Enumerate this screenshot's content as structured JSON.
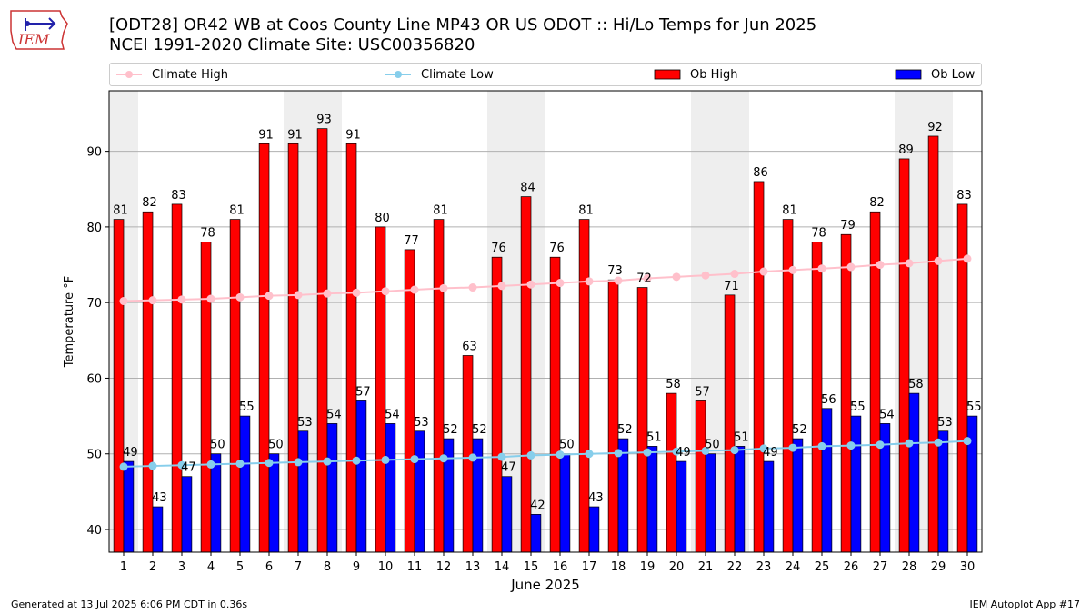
{
  "header": {
    "logo_text": "IEM",
    "title_line1": "[ODT28] OR42 WB at Coos County Line MP43 OR US ODOT :: Hi/Lo Temps for Jun 2025",
    "title_line2": "NCEI 1991-2020 Climate Site: USC00356820"
  },
  "legend": {
    "climate_high": "Climate High",
    "climate_low": "Climate Low",
    "ob_high": "Ob High",
    "ob_low": "Ob Low"
  },
  "footer": {
    "generated": "Generated at 13 Jul 2025 6:06 PM CDT in 0.36s",
    "app": "IEM Autoplot App #17"
  },
  "colors": {
    "ob_high": "#ff0000",
    "ob_low": "#0000ff",
    "climate_high": "#ffc0cb",
    "climate_low": "#87ceeb",
    "weekend_shade": "#eeeeee",
    "grid": "#b0b0b0",
    "logo": "#cc3333"
  },
  "chart_data": {
    "type": "bar",
    "xlabel": "June 2025",
    "ylabel": "Temperature °F",
    "ylim": [
      37,
      98
    ],
    "yticks": [
      40,
      50,
      60,
      70,
      80,
      90
    ],
    "grid": true,
    "legend_position": "top",
    "categories": [
      "1",
      "2",
      "3",
      "4",
      "5",
      "6",
      "7",
      "8",
      "9",
      "10",
      "11",
      "12",
      "13",
      "14",
      "15",
      "16",
      "17",
      "18",
      "19",
      "20",
      "21",
      "22",
      "23",
      "24",
      "25",
      "26",
      "27",
      "28",
      "29",
      "30"
    ],
    "weekend_days": [
      1,
      7,
      8,
      14,
      15,
      21,
      22,
      28,
      29
    ],
    "series": [
      {
        "name": "Ob High",
        "kind": "bar",
        "values": [
          81,
          82,
          83,
          78,
          81,
          91,
          91,
          93,
          91,
          80,
          77,
          81,
          63,
          76,
          84,
          76,
          81,
          73,
          72,
          58,
          57,
          71,
          86,
          81,
          78,
          79,
          82,
          89,
          92,
          83
        ],
        "labels": [
          "81",
          "82",
          "83",
          "78",
          "81",
          "91",
          "91",
          "93",
          "91",
          "80",
          "77",
          "81",
          "63",
          "76",
          "84",
          "76",
          "81",
          "73",
          "72",
          "58",
          "57",
          "71",
          "86",
          "81",
          "78",
          "79",
          "82",
          "89",
          "92",
          "83"
        ]
      },
      {
        "name": "Ob Low",
        "kind": "bar",
        "values": [
          49,
          43,
          47,
          50,
          55,
          50,
          53,
          54,
          57,
          54,
          53,
          52,
          52,
          47,
          42,
          50,
          43,
          52,
          51,
          49,
          50,
          51,
          49,
          52,
          56,
          55,
          54,
          58,
          53,
          55
        ],
        "labels": [
          "49",
          "43",
          "47",
          "50",
          "55",
          "50",
          "53",
          "54",
          "57",
          "54",
          "53",
          "52",
          "52",
          "47",
          "42",
          "50",
          "43",
          "52",
          "51",
          "49",
          "50",
          "51",
          "49",
          "52",
          "56",
          "55",
          "54",
          "58",
          "53",
          "55"
        ]
      },
      {
        "name": "Climate High",
        "kind": "line",
        "values": [
          70.2,
          70.3,
          70.4,
          70.5,
          70.7,
          70.9,
          71.0,
          71.2,
          71.3,
          71.5,
          71.7,
          71.9,
          72.0,
          72.2,
          72.4,
          72.6,
          72.8,
          72.9,
          73.2,
          73.4,
          73.6,
          73.8,
          74.1,
          74.3,
          74.5,
          74.7,
          75.0,
          75.2,
          75.5,
          75.8
        ]
      },
      {
        "name": "Climate Low",
        "kind": "line",
        "values": [
          48.3,
          48.4,
          48.5,
          48.6,
          48.7,
          48.8,
          48.9,
          49.0,
          49.1,
          49.2,
          49.3,
          49.4,
          49.5,
          49.6,
          49.8,
          49.9,
          50.0,
          50.1,
          50.2,
          50.3,
          50.4,
          50.5,
          50.7,
          50.8,
          51.0,
          51.1,
          51.2,
          51.4,
          51.5,
          51.7
        ]
      }
    ]
  }
}
